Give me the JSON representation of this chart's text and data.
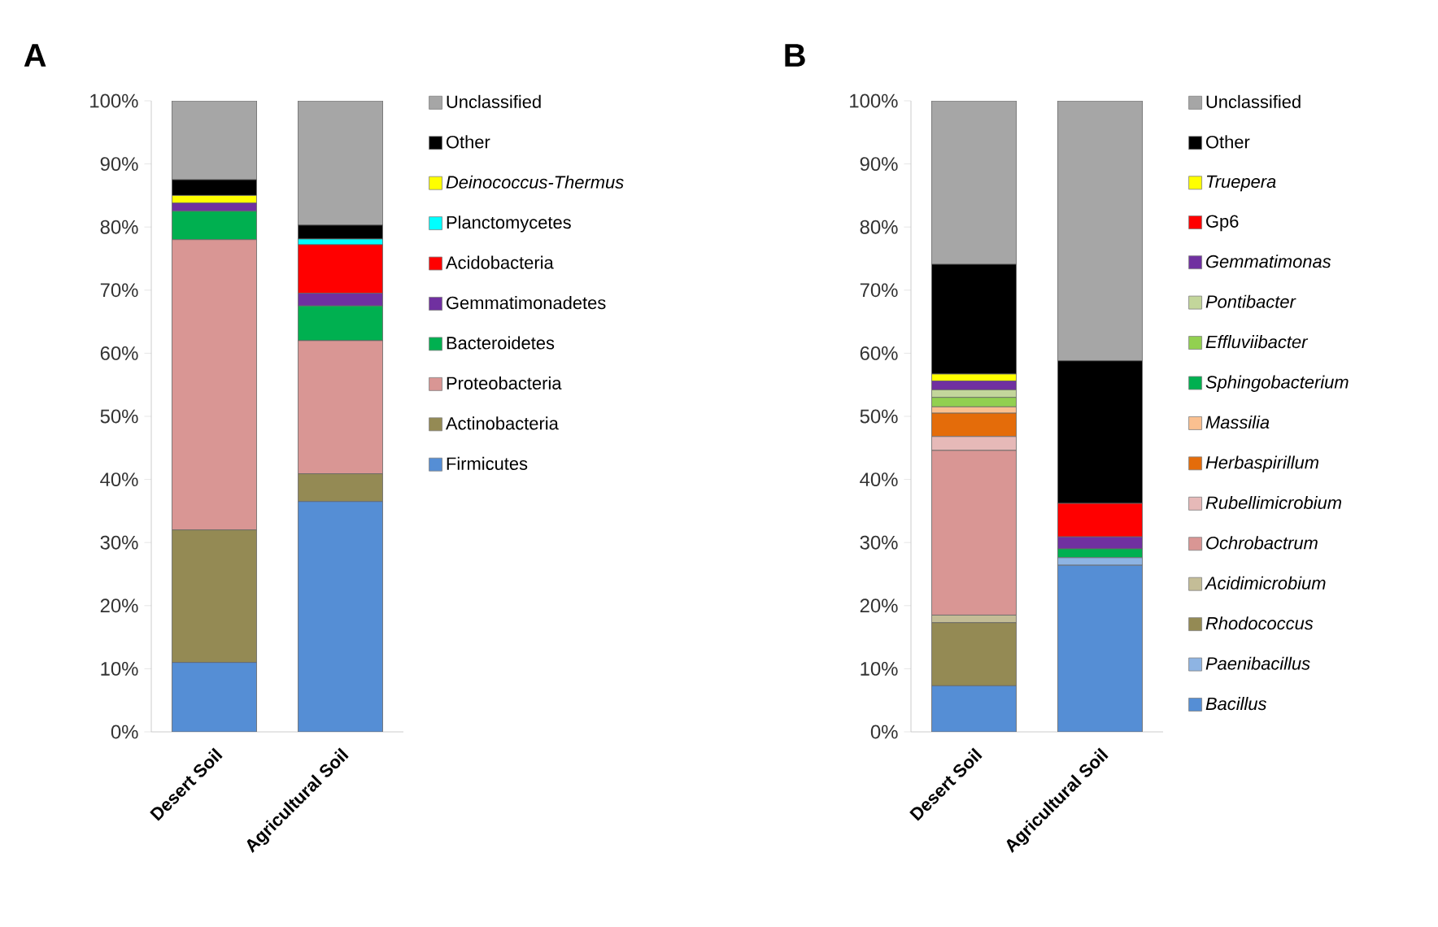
{
  "chart_data": [
    {
      "type": "bar",
      "title": "A",
      "stacked": true,
      "legend": "right",
      "categories": [
        "Desert Soil",
        "Agricultural Soil"
      ],
      "ylim": [
        0,
        100
      ],
      "yticks": [
        {
          "value": 0,
          "label": "0%"
        },
        {
          "value": 10,
          "label": "10%"
        },
        {
          "value": 20,
          "label": "20%"
        },
        {
          "value": 30,
          "label": "30%"
        },
        {
          "value": 40,
          "label": "40%"
        },
        {
          "value": 50,
          "label": "50%"
        },
        {
          "value": 60,
          "label": "60%"
        },
        {
          "value": 70,
          "label": "70%"
        },
        {
          "value": 80,
          "label": "80%"
        },
        {
          "value": 90,
          "label": "90%"
        },
        {
          "value": 100,
          "label": "100%"
        }
      ],
      "series": [
        {
          "name": "Firmicutes",
          "color": "#558ed5",
          "values": [
            11,
            36.5
          ]
        },
        {
          "name": "Actinobacteria",
          "color": "#948a54",
          "values": [
            21,
            4.4
          ]
        },
        {
          "name": "Proteobacteria",
          "color": "#d99694",
          "values": [
            46,
            21.1
          ]
        },
        {
          "name": "Bacteroidetes",
          "color": "#00b050",
          "values": [
            4.5,
            5.5
          ]
        },
        {
          "name": "Gemmatimonadetes",
          "color": "#7030a0",
          "values": [
            1.3,
            2.0
          ]
        },
        {
          "name": "Acidobacteria",
          "color": "#ff0000",
          "values": [
            0,
            7.7
          ]
        },
        {
          "name": "Planctomycetes",
          "color": "#00ffff",
          "values": [
            0,
            0.9
          ]
        },
        {
          "name": "*Deinococcus-Thermus*",
          "color": "#ffff00",
          "values": [
            1.2,
            0
          ]
        },
        {
          "name": "Other",
          "color": "#000000",
          "values": [
            2.5,
            2.2
          ]
        },
        {
          "name": "Unclassified",
          "color": "#a6a6a6",
          "values": [
            12.5,
            19.7
          ]
        }
      ]
    },
    {
      "type": "bar",
      "title": "B",
      "stacked": true,
      "legend": "right",
      "categories": [
        "Desert Soil",
        "Agricultural Soil"
      ],
      "ylim": [
        0,
        100
      ],
      "yticks": [
        {
          "value": 0,
          "label": "0%"
        },
        {
          "value": 10,
          "label": "10%"
        },
        {
          "value": 20,
          "label": "20%"
        },
        {
          "value": 30,
          "label": "30%"
        },
        {
          "value": 40,
          "label": "40%"
        },
        {
          "value": 50,
          "label": "50%"
        },
        {
          "value": 60,
          "label": "60%"
        },
        {
          "value": 70,
          "label": "70%"
        },
        {
          "value": 80,
          "label": "80%"
        },
        {
          "value": 90,
          "label": "90%"
        },
        {
          "value": 100,
          "label": "100%"
        }
      ],
      "series": [
        {
          "name": "*Bacillus*",
          "color": "#558ed5",
          "values": [
            7.3,
            26.4
          ]
        },
        {
          "name": "*Paenibacillus*",
          "color": "#8eb4e3",
          "values": [
            0,
            1.2
          ]
        },
        {
          "name": "*Rhodococcus*",
          "color": "#948a54",
          "values": [
            10.0,
            0
          ]
        },
        {
          "name": "*Acidimicrobium*",
          "color": "#c4bd97",
          "values": [
            1.2,
            0
          ]
        },
        {
          "name": "*Ochrobactrum*",
          "color": "#d99694",
          "values": [
            26.1,
            0
          ]
        },
        {
          "name": "*Rubellimicrobium*",
          "color": "#e6b9b8",
          "values": [
            2.2,
            0
          ]
        },
        {
          "name": "*Herbaspirillum*",
          "color": "#e46c0a",
          "values": [
            3.7,
            0
          ]
        },
        {
          "name": "*Massilia*",
          "color": "#fac090",
          "values": [
            1.0,
            0
          ]
        },
        {
          "name": "*Sphingobacterium*",
          "color": "#00b050",
          "values": [
            0,
            1.4
          ]
        },
        {
          "name": "*Effluviibacter*",
          "color": "#92d050",
          "values": [
            1.5,
            0
          ]
        },
        {
          "name": "*Pontibacter*",
          "color": "#c3d69b",
          "values": [
            1.2,
            0
          ]
        },
        {
          "name": "*Gemmatimonas*",
          "color": "#7030a0",
          "values": [
            1.4,
            1.9
          ]
        },
        {
          "name": "Gp6",
          "color": "#ff0000",
          "values": [
            0,
            5.3
          ]
        },
        {
          "name": "*Truepera*",
          "color": "#ffff00",
          "values": [
            1.1,
            0
          ]
        },
        {
          "name": "Other",
          "color": "#000000",
          "values": [
            17.4,
            22.6
          ]
        },
        {
          "name": "Unclassified",
          "color": "#a6a6a6",
          "values": [
            25.9,
            41.2
          ]
        }
      ]
    }
  ]
}
